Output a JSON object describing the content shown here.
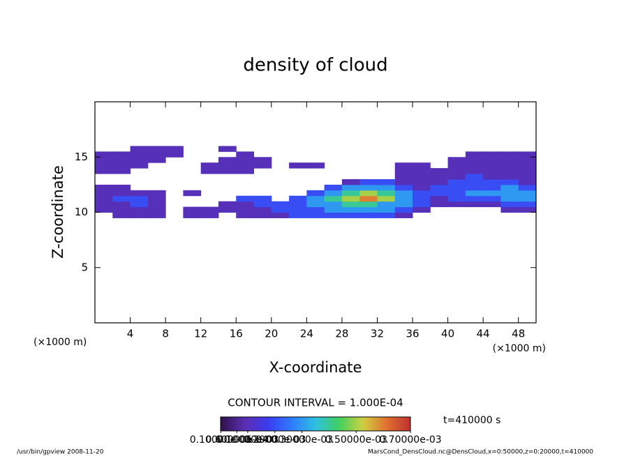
{
  "chart_data": {
    "type": "heatmap",
    "title": "density of cloud",
    "x_label": "X-coordinate",
    "y_label": "Z-coordinate",
    "x_unit_left": "(×1000 m)",
    "x_unit_right": "(×1000 m)",
    "contour_interval": "CONTOUR INTERVAL = 1.000E-04",
    "time_label": "t=410000 s",
    "footer_left": "/usr/bin/gpview  2008-11-20",
    "footer_right": "MarsCond_DensCloud.nc@DensCloud,x=0:50000,z=0:20000,t=410000",
    "xlim": [
      0,
      50
    ],
    "ylim": [
      0,
      20
    ],
    "xticks": [
      4,
      8,
      12,
      16,
      20,
      24,
      28,
      32,
      36,
      40,
      44,
      48
    ],
    "yticks": [
      5,
      10,
      15
    ],
    "x": [
      0,
      2,
      4,
      6,
      8,
      10,
      12,
      14,
      16,
      18,
      20,
      22,
      24,
      26,
      28,
      30,
      32,
      34,
      36,
      38,
      40,
      42,
      44,
      46,
      48,
      50
    ],
    "z": [
      9.5,
      10,
      10.5,
      11,
      11.5,
      12,
      12.5,
      13,
      13.5,
      14,
      14.5,
      15,
      15.5,
      16
    ],
    "values": [
      [
        null,
        0.0001,
        0.0001,
        0.0001,
        null,
        0.0001,
        0.0001,
        null,
        0.0001,
        0.0001,
        0.0001,
        0.0002,
        0.0002,
        0.0002,
        0.0002,
        0.0002,
        0.0002,
        0.0001,
        null,
        null,
        null,
        null,
        null,
        null,
        null
      ],
      [
        0.0001,
        0.0001,
        0.0001,
        0.0001,
        null,
        0.0001,
        0.0001,
        0.0001,
        0.0001,
        0.0001,
        0.0002,
        0.0002,
        0.0002,
        0.0003,
        0.0003,
        0.0003,
        0.0003,
        0.0002,
        0.0001,
        null,
        null,
        null,
        null,
        0.0001,
        0.0001
      ],
      [
        0.0001,
        0.0001,
        0.0002,
        0.0001,
        null,
        null,
        null,
        0.0001,
        0.0001,
        0.0002,
        0.0002,
        0.0002,
        0.0003,
        0.0003,
        0.0004,
        0.0004,
        0.0003,
        0.0003,
        0.0002,
        0.0001,
        0.0001,
        0.0001,
        0.0001,
        0.0002,
        0.0002
      ],
      [
        0.0001,
        0.0002,
        0.0002,
        0.0001,
        null,
        null,
        null,
        null,
        0.0002,
        0.0002,
        null,
        0.0002,
        0.0003,
        0.0004,
        0.0005,
        0.0006,
        0.0005,
        0.0003,
        0.0002,
        0.0001,
        0.0002,
        0.0002,
        0.0002,
        0.0003,
        0.0003
      ],
      [
        0.0001,
        0.0001,
        0.0001,
        0.0001,
        null,
        0.0001,
        null,
        null,
        null,
        null,
        null,
        null,
        0.0002,
        0.0003,
        0.0004,
        0.0005,
        0.0004,
        0.0003,
        0.0002,
        0.0002,
        0.0002,
        0.0003,
        0.0003,
        0.0003,
        0.0003
      ],
      [
        0.0001,
        0.0001,
        null,
        null,
        null,
        null,
        null,
        null,
        null,
        null,
        null,
        null,
        null,
        0.0002,
        0.0003,
        0.0003,
        0.0003,
        0.0002,
        0.0001,
        0.0002,
        0.0002,
        0.0002,
        0.0002,
        0.0003,
        0.0002
      ],
      [
        null,
        null,
        null,
        null,
        null,
        null,
        null,
        null,
        null,
        null,
        null,
        null,
        null,
        null,
        0.0001,
        0.0002,
        0.0002,
        0.0001,
        0.0001,
        0.0001,
        0.0002,
        0.0002,
        0.0002,
        0.0002,
        0.0001
      ],
      [
        null,
        null,
        null,
        null,
        null,
        null,
        null,
        null,
        null,
        null,
        null,
        null,
        null,
        null,
        null,
        null,
        null,
        0.0001,
        0.0001,
        0.0001,
        0.0001,
        0.0002,
        0.0001,
        0.0001,
        0.0001
      ],
      [
        0.0001,
        0.0001,
        null,
        null,
        null,
        null,
        0.0001,
        0.0001,
        0.0001,
        null,
        null,
        null,
        null,
        null,
        null,
        null,
        null,
        0.0001,
        0.0001,
        0.0001,
        0.0001,
        0.0001,
        0.0001,
        0.0001,
        0.0001
      ],
      [
        0.0001,
        0.0001,
        0.0001,
        null,
        null,
        null,
        0.0001,
        0.0001,
        0.0001,
        0.0001,
        null,
        0.0001,
        0.0001,
        null,
        null,
        null,
        null,
        0.0001,
        0.0001,
        null,
        0.0001,
        0.0001,
        0.0001,
        0.0001,
        0.0001
      ],
      [
        0.0001,
        0.0001,
        0.0001,
        0.0001,
        null,
        null,
        null,
        0.0001,
        0.0001,
        0.0001,
        null,
        null,
        null,
        null,
        null,
        null,
        null,
        null,
        null,
        null,
        0.0001,
        0.0001,
        0.0001,
        0.0001,
        0.0001
      ],
      [
        0.0001,
        0.0001,
        0.0001,
        0.0001,
        0.0001,
        null,
        null,
        null,
        0.0001,
        null,
        null,
        null,
        null,
        null,
        null,
        null,
        null,
        null,
        null,
        null,
        null,
        0.0001,
        0.0001,
        0.0001,
        0.0001
      ],
      [
        null,
        null,
        0.0001,
        0.0001,
        0.0001,
        null,
        null,
        0.0001,
        null,
        null,
        null,
        null,
        null,
        null,
        null,
        null,
        null,
        null,
        null,
        null,
        null,
        null,
        null,
        null,
        null
      ]
    ],
    "clim": [
      0,
      0.0007
    ],
    "colormap": [
      "#30104a",
      "#5a2eb0",
      "#3c3cf0",
      "#2f7cff",
      "#2ec0e0",
      "#40d060",
      "#d0d040",
      "#e07030",
      "#c03030"
    ],
    "colorbar_ticks": [
      {
        "value": 1e-06,
        "label": "0.10000e-05"
      },
      {
        "value": 6e-05,
        "label": "0.60000e-04"
      },
      {
        "value": 0.0001,
        "label": "0.10000e-03"
      },
      {
        "value": 0.0002,
        "label": "0.20000e-03"
      },
      {
        "value": 0.0003,
        "label": "0.30000e-03"
      },
      {
        "value": 0.0005,
        "label": "0.50000e-03"
      },
      {
        "value": 0.0007,
        "label": "0.70000e-03"
      }
    ]
  }
}
